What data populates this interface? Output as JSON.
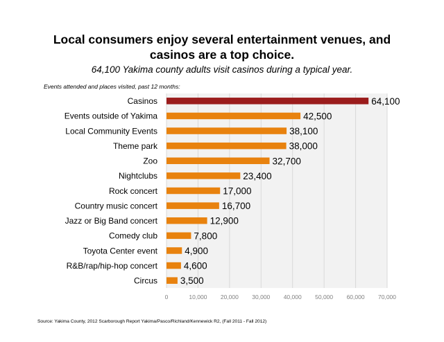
{
  "slide": {
    "title_line1": "Local consumers enjoy several entertainment venues, and",
    "title_line2": "casinos are a top choice.",
    "subtitle": "64,100 Yakima county adults visit casinos during a typical year.",
    "caption": "Events attended and places visited, past 12 months:",
    "source": "Source: Yakima County, 2012 Scarborough Report Yakima/Pasco/Richland/Kennewick R2, (Fall 2011 - Fall 2012)"
  },
  "chart_data": {
    "type": "bar",
    "orientation": "horizontal",
    "categories": [
      "Casinos",
      "Events outside of Yakima",
      "Local Community Events",
      "Theme park",
      "Zoo",
      "Nightclubs",
      "Rock concert",
      "Country music concert",
      "Jazz or  Big Band concert",
      "Comedy club",
      "Toyota Center event",
      "R&B/rap/hip-hop concert",
      "Circus"
    ],
    "values": [
      64100,
      42500,
      38100,
      38000,
      32700,
      23400,
      17000,
      16700,
      12900,
      7800,
      4900,
      4600,
      3500
    ],
    "data_labels": [
      "64,100",
      "42,500",
      "38,100",
      "38,000",
      "32,700",
      "23,400",
      "17,000",
      "16,700",
      "12,900",
      "7,800",
      "4,900",
      "4,600",
      "3,500"
    ],
    "x_ticks": [
      0,
      10000,
      20000,
      30000,
      40000,
      50000,
      60000,
      70000
    ],
    "x_tick_labels": [
      "0",
      "10,000",
      "20,000",
      "30,000",
      "40,000",
      "50,000",
      "60,000",
      "70,000"
    ],
    "xlim": [
      0,
      70000
    ],
    "grid": true,
    "legend": "none",
    "colors": {
      "highlight": "#9b1c1c",
      "default": "#e8820e",
      "plot_bg": "#f2f2f2",
      "grid": "#d9d9d9"
    }
  }
}
